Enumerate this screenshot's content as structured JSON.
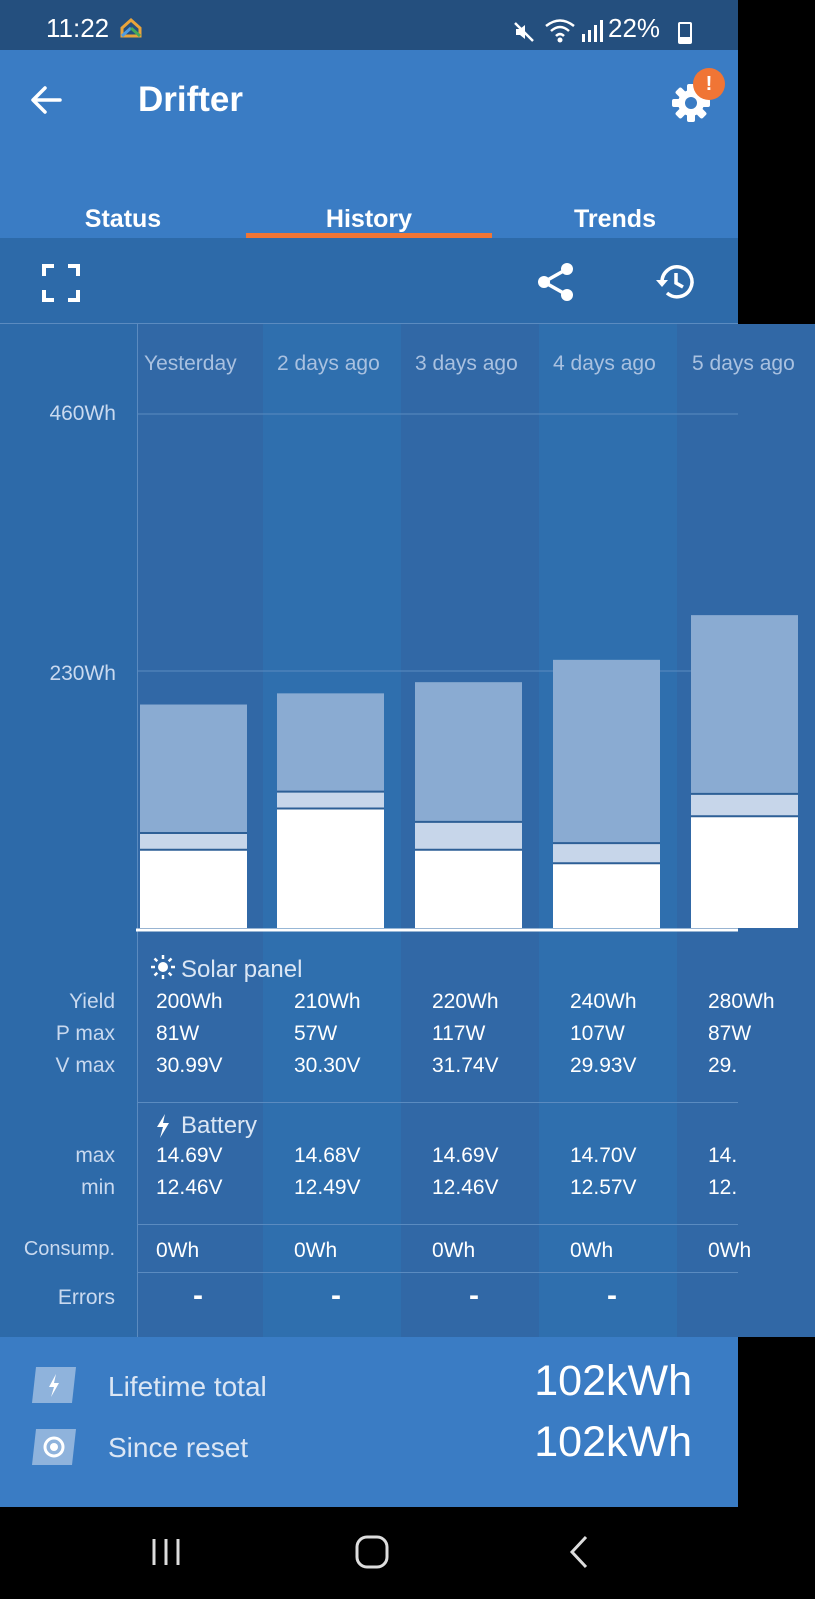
{
  "status_bar": {
    "time": "11:22",
    "battery": "22%"
  },
  "header": {
    "title": "Drifter",
    "settings_badge": "!"
  },
  "tabs": [
    {
      "label": "Status"
    },
    {
      "label": "History"
    },
    {
      "label": "Trends"
    }
  ],
  "history": {
    "y_ticks": [
      "460Wh",
      "230Wh"
    ],
    "days": [
      {
        "label": "Yesterday",
        "yield": "200Wh",
        "pmax": "81W",
        "vmax": "30.99V",
        "bmax": "14.69V",
        "bmin": "12.46V",
        "consump": "0Wh",
        "errors": "-"
      },
      {
        "label": "2 days ago",
        "yield": "210Wh",
        "pmax": "57W",
        "vmax": "30.30V",
        "bmax": "14.68V",
        "bmin": "12.49V",
        "consump": "0Wh",
        "errors": "-"
      },
      {
        "label": "3 days ago",
        "yield": "220Wh",
        "pmax": "117W",
        "vmax": "31.74V",
        "bmax": "14.69V",
        "bmin": "12.46V",
        "consump": "0Wh",
        "errors": "-"
      },
      {
        "label": "4 days ago",
        "yield": "240Wh",
        "pmax": "107W",
        "vmax": "29.93V",
        "bmax": "14.70V",
        "bmin": "12.57V",
        "consump": "0Wh",
        "errors": "-"
      },
      {
        "label": "5 days ago",
        "yield": "280Wh",
        "pmax": "87W",
        "vmax": "29.",
        "bmax": "14.",
        "bmin": "12.",
        "consump": "0Wh",
        "errors": ""
      }
    ],
    "solar_title": "Solar panel",
    "battery_title": "Battery",
    "row_labels": {
      "yield": "Yield",
      "pmax": "P max",
      "vmax": "V max",
      "bmax": "max",
      "bmin": "min",
      "consump": "Consump.",
      "errors": "Errors"
    }
  },
  "chart_data": {
    "type": "bar",
    "categories": [
      "Yesterday",
      "2 days ago",
      "3 days ago",
      "4 days ago",
      "5 days ago"
    ],
    "ylim": [
      0,
      460
    ],
    "y_ticks": [
      230,
      460
    ],
    "series": [
      {
        "values": [
          200,
          210,
          220,
          240,
          280
        ]
      }
    ],
    "segments": [
      {
        "bulk": [
          70,
          107,
          70,
          58,
          100
        ],
        "absorption": [
          15,
          15,
          25,
          18,
          20
        ]
      }
    ]
  },
  "totals": {
    "lifetime_label": "Lifetime total",
    "lifetime_value": "102kWh",
    "reset_label": "Since reset",
    "reset_value": "102kWh"
  },
  "colors": {
    "header": "#3a7cc4",
    "background": "#2d6aa9",
    "accent": "#f07535",
    "bar_top": "#8aabd2",
    "bar_mid": "#c7d6ea"
  }
}
